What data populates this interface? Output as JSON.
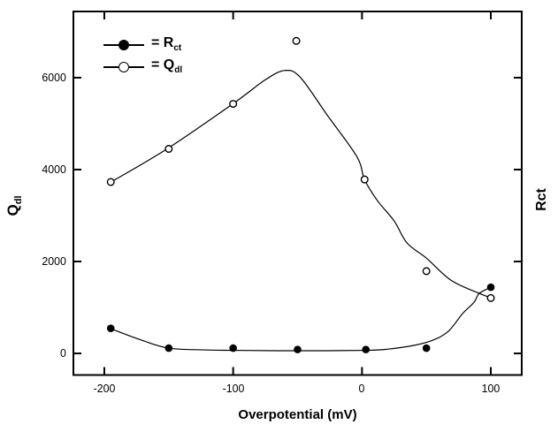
{
  "figure": {
    "background": "#ffffff",
    "line_color": "#000000"
  },
  "axis": {
    "x_label": "Overpotential (mV)",
    "y_left": {
      "main": "Q",
      "sub": "dl"
    },
    "y_right_label": "Rct",
    "x_tick_labels": [
      "-200",
      "-100",
      "0",
      "100"
    ],
    "y_tick_labels": [
      "0",
      "2000",
      "4000",
      "6000"
    ]
  },
  "legend": {
    "items": [
      {
        "marker": "filled-circle",
        "prefix": "= R",
        "sub": "ct",
        "series": "Rct"
      },
      {
        "marker": "open-circle",
        "prefix": "= Q",
        "sub": "dl",
        "series": "Qdl"
      }
    ]
  },
  "chart_data": {
    "type": "scatter",
    "title": "",
    "xlabel": "Overpotential (mV)",
    "ylabel_left": "Qdl",
    "ylabel_right": "Rct",
    "xlim": [
      -224,
      124
    ],
    "ylim": [
      -470,
      7440
    ],
    "x_ticks": [
      -200,
      -100,
      0,
      100
    ],
    "y_ticks": [
      0,
      2000,
      4000,
      6000
    ],
    "grid": false,
    "legend_position": "top-left-inside",
    "tick_style": "inward-all-four-sides",
    "series": [
      {
        "name": "Rct",
        "marker": "filled-circle",
        "points": [
          [
            -195,
            545
          ],
          [
            -150,
            115
          ],
          [
            -100,
            115
          ],
          [
            -50,
            85
          ],
          [
            3,
            85
          ],
          [
            50,
            115
          ],
          [
            100,
            1440
          ]
        ],
        "fit_curve": [
          [
            -195,
            538
          ],
          [
            -171,
            288
          ],
          [
            -150,
            115
          ],
          [
            -123,
            77
          ],
          [
            -100,
            67
          ],
          [
            -50,
            58
          ],
          [
            4,
            67
          ],
          [
            21,
            96
          ],
          [
            41,
            179
          ],
          [
            55,
            288
          ],
          [
            67,
            480
          ],
          [
            78,
            864
          ],
          [
            87,
            1114
          ],
          [
            91,
            1306
          ],
          [
            100,
            1440
          ]
        ]
      },
      {
        "name": "Qdl",
        "marker": "open-circle",
        "points": [
          [
            -195,
            3730
          ],
          [
            -150,
            4450
          ],
          [
            -100,
            5430
          ],
          [
            -51,
            6800
          ],
          [
            2,
            3785
          ],
          [
            50,
            1790
          ],
          [
            100,
            1205
          ]
        ],
        "fit_curve": [
          [
            -195,
            3726
          ],
          [
            -151,
            4456
          ],
          [
            -100,
            5435
          ],
          [
            -75,
            5954
          ],
          [
            -60,
            6156
          ],
          [
            -48,
            6012
          ],
          [
            -27,
            5186
          ],
          [
            -4,
            4283
          ],
          [
            2,
            3784
          ],
          [
            12,
            3323
          ],
          [
            25,
            2881
          ],
          [
            35,
            2401
          ],
          [
            50,
            2074
          ],
          [
            69,
            1594
          ],
          [
            91,
            1306
          ],
          [
            102,
            1191
          ]
        ]
      }
    ]
  }
}
